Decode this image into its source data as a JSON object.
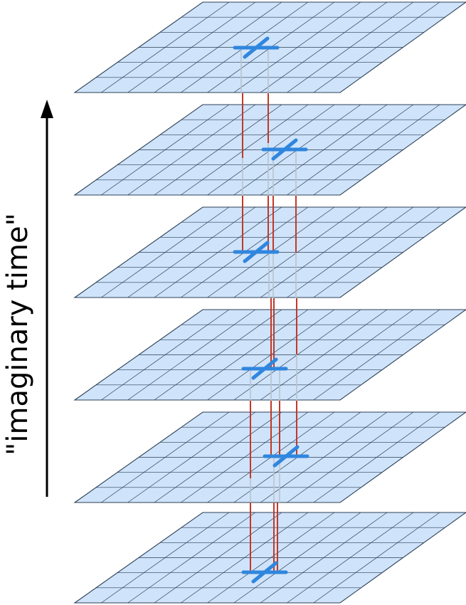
{
  "axis": {
    "label": "\"imaginary time\"",
    "direction": "up"
  },
  "colors": {
    "plane_fill": "#cfe3fa",
    "grid_line": "#2b3f55",
    "worldline": "#c0392b",
    "worldline_ghost": "#b8c4cf",
    "cross": "#2f86de",
    "arrow": "#000000"
  },
  "grid": {
    "divisions_along": 10,
    "divisions_depth": 6
  },
  "slices": [
    {
      "id": "slice-1"
    },
    {
      "id": "slice-2"
    },
    {
      "id": "slice-3"
    },
    {
      "id": "slice-4"
    },
    {
      "id": "slice-5"
    },
    {
      "id": "slice-6"
    }
  ]
}
